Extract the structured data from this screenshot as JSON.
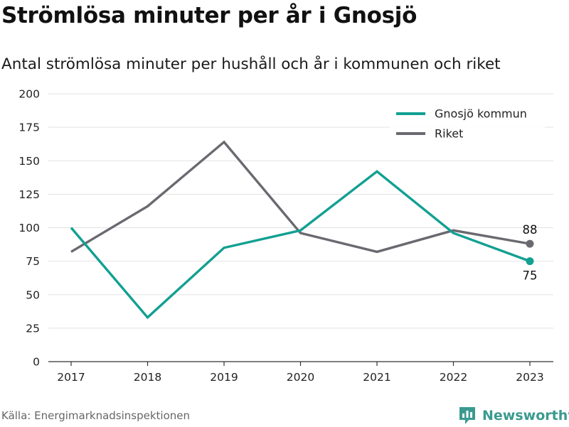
{
  "header": {
    "title": "Strömlösa minuter per år i Gnosjö",
    "subtitle": "Antal strömlösa minuter per hushåll och år i kommunen och riket"
  },
  "footer": {
    "source": "Källa: Energimarknadsinspektionen",
    "brand": "Newsworthy"
  },
  "colors": {
    "gnosjo": "#12a092",
    "riket": "#6b6970",
    "grid": "#e2e2e2",
    "axis": "#333333"
  },
  "chart_data": {
    "type": "line",
    "x": [
      "2017",
      "2018",
      "2019",
      "2020",
      "2021",
      "2022",
      "2023"
    ],
    "ylim": [
      0,
      200
    ],
    "yticks": [
      0,
      25,
      50,
      75,
      100,
      125,
      150,
      175,
      200
    ],
    "grid": true,
    "legend_position": "top-right",
    "series": [
      {
        "name": "Gnosjö kommun",
        "values": [
          100,
          33,
          85,
          98,
          142,
          96,
          75
        ],
        "end_label": "75"
      },
      {
        "name": "Riket",
        "values": [
          82,
          116,
          164,
          96,
          82,
          98,
          88
        ],
        "end_label": "88"
      }
    ]
  }
}
